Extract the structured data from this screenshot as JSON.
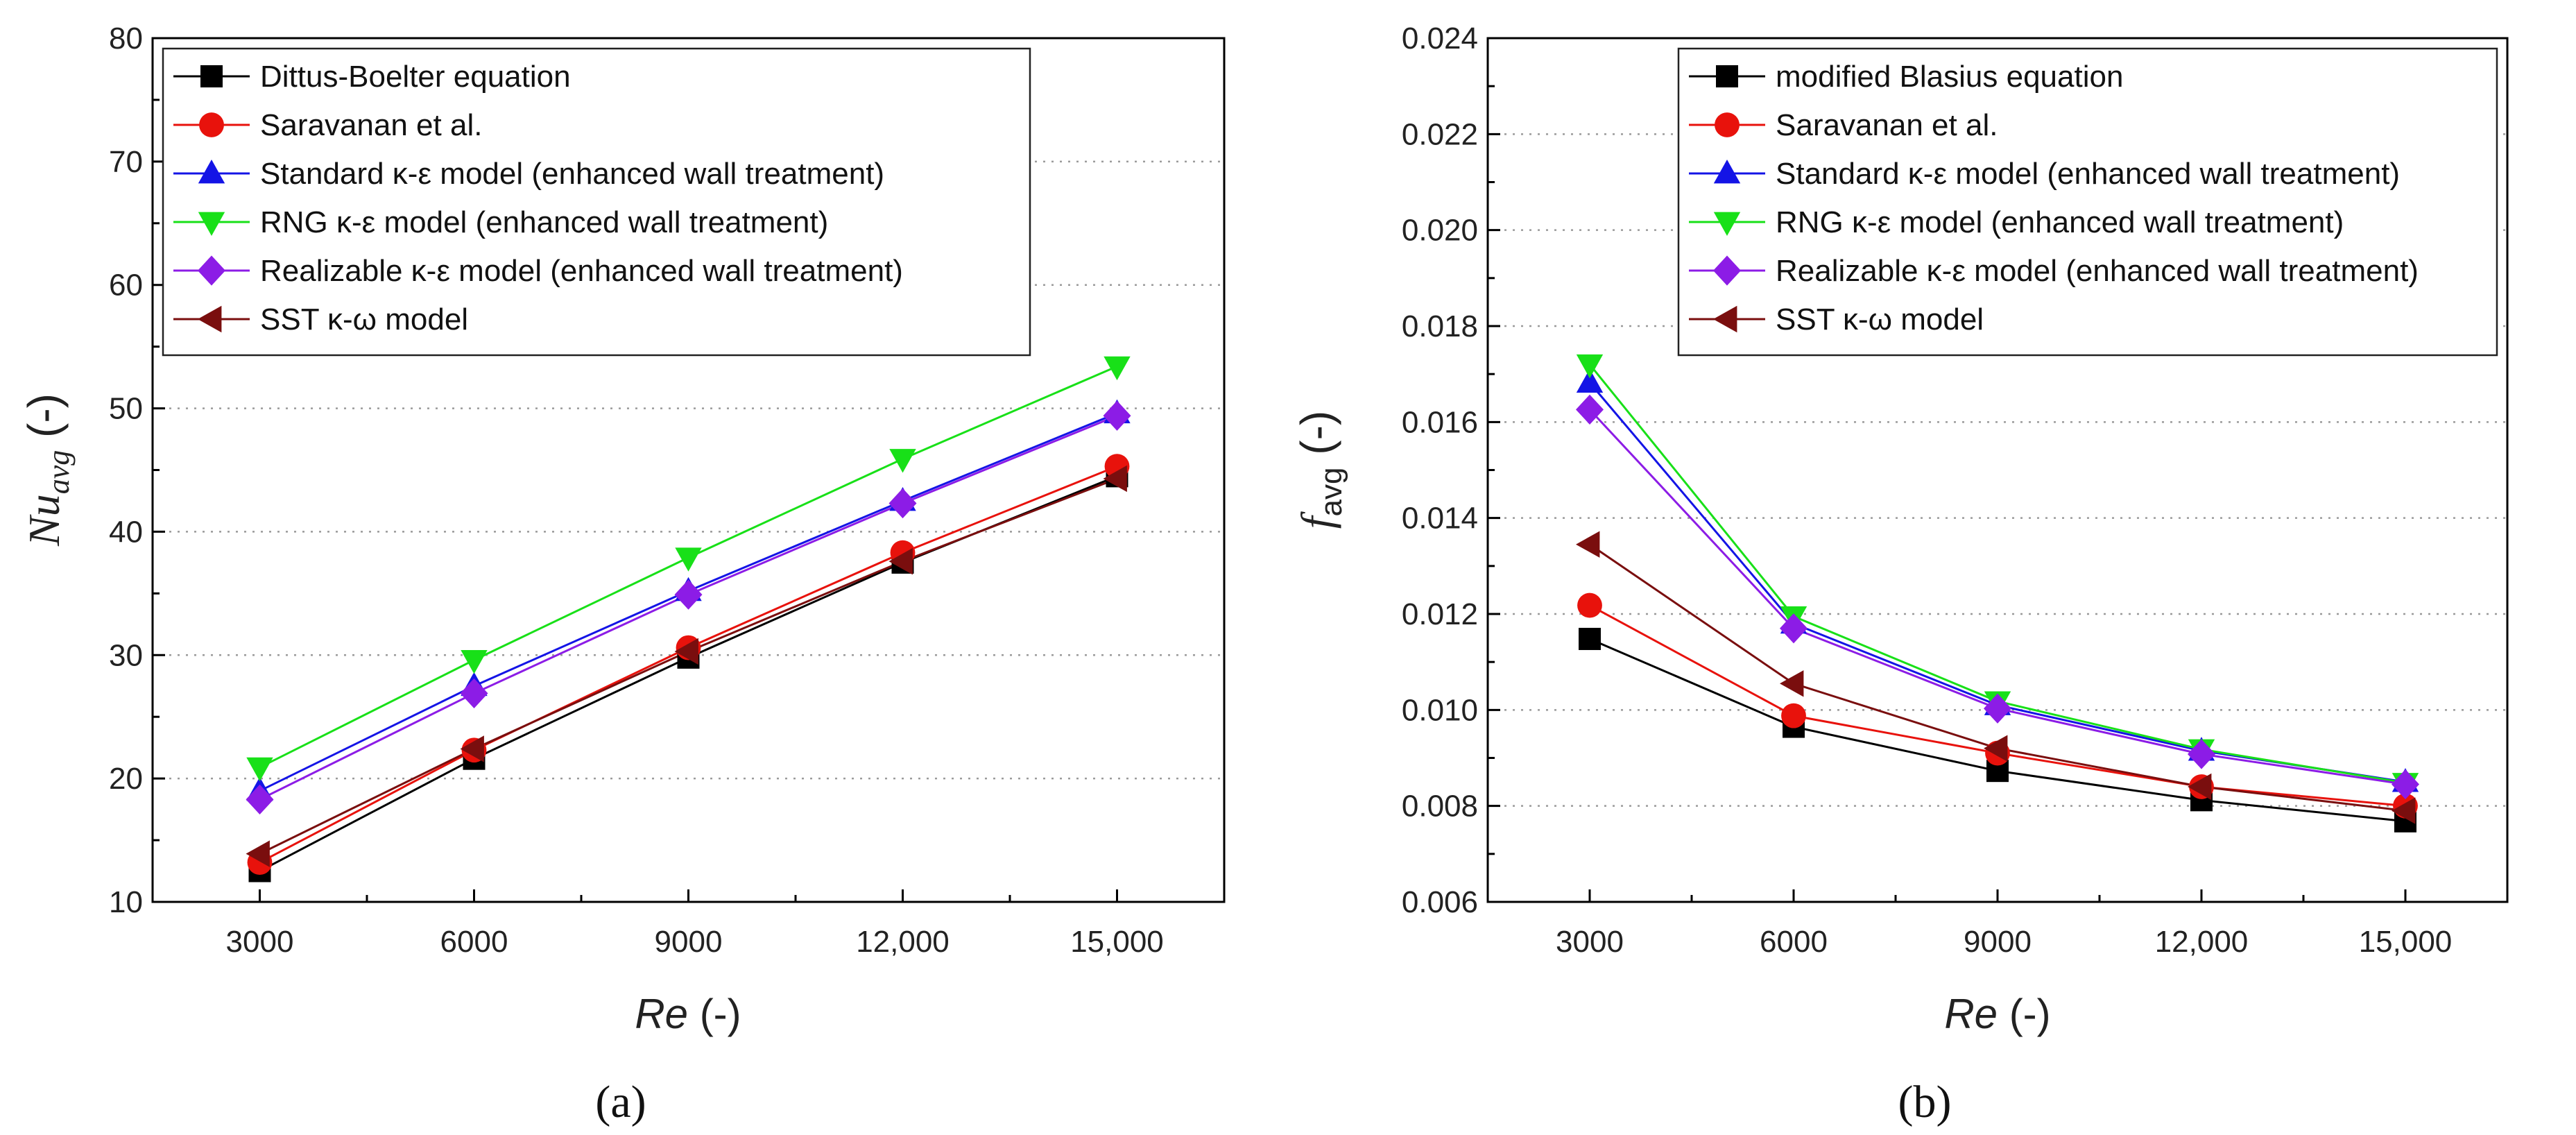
{
  "chart_data": [
    {
      "type": "line",
      "panel_label": "(a)",
      "ylabel_main": "Nu",
      "ylabel_sub": "avg",
      "ylabel_suffix": " (-)",
      "xlabel_main": "Re",
      "xlabel_suffix": " (-)",
      "x": [
        3000,
        6000,
        9000,
        12000,
        15000
      ],
      "x_tick_labels": [
        "3000",
        "6000",
        "9000",
        "12,000",
        "15,000"
      ],
      "xlim": [
        1500,
        16500
      ],
      "ylim": [
        10,
        80
      ],
      "y_ticks": [
        10,
        20,
        30,
        40,
        50,
        60,
        70,
        80
      ],
      "y_tick_labels": [
        "10",
        "20",
        "30",
        "40",
        "50",
        "60",
        "70",
        "80"
      ],
      "grid": "horizontal dotted",
      "legend_position": "top-left",
      "series": [
        {
          "name": "Dittus-Boelter equation",
          "color": "#000000",
          "marker": "square",
          "values": [
            12.5,
            21.6,
            29.8,
            37.5,
            44.5
          ]
        },
        {
          "name": "Saravanan et al.",
          "color": "#e8120c",
          "marker": "circle",
          "values": [
            13.2,
            22.3,
            30.6,
            38.3,
            45.3
          ]
        },
        {
          "name": "Standard κ-ε model (enhanced wall treatment)",
          "color": "#1414e6",
          "marker": "triangle-up",
          "values": [
            19.0,
            27.5,
            35.2,
            42.5,
            49.6
          ]
        },
        {
          "name": "RNG κ-ε model (enhanced wall treatment)",
          "color": "#18e018",
          "marker": "triangle-down",
          "values": [
            20.9,
            29.6,
            37.9,
            45.9,
            53.4
          ]
        },
        {
          "name": "Realizable κ-ε model (enhanced wall treatment)",
          "color": "#8c1ce6",
          "marker": "diamond",
          "values": [
            18.3,
            26.9,
            34.9,
            42.3,
            49.4
          ]
        },
        {
          "name": "SST κ-ω model",
          "color": "#7a0e0e",
          "marker": "triangle-left",
          "values": [
            13.9,
            22.4,
            30.3,
            37.6,
            44.3
          ]
        }
      ]
    },
    {
      "type": "line",
      "panel_label": "(b)",
      "ylabel_main": "f",
      "ylabel_sub": "avg",
      "ylabel_suffix": " (-)",
      "xlabel_main": "Re",
      "xlabel_suffix": " (-)",
      "x": [
        3000,
        6000,
        9000,
        12000,
        15000
      ],
      "x_tick_labels": [
        "3000",
        "6000",
        "9000",
        "12,000",
        "15,000"
      ],
      "xlim": [
        1500,
        16500
      ],
      "ylim": [
        0.006,
        0.024
      ],
      "y_ticks": [
        0.006,
        0.008,
        0.01,
        0.012,
        0.014,
        0.016,
        0.018,
        0.02,
        0.022,
        0.024
      ],
      "y_tick_labels": [
        "0.006",
        "0.008",
        "0.010",
        "0.012",
        "0.014",
        "0.016",
        "0.018",
        "0.020",
        "0.022",
        "0.024"
      ],
      "grid": "horizontal dotted",
      "legend_position": "top-right",
      "series": [
        {
          "name": "modified Blasius equation",
          "color": "#000000",
          "marker": "square",
          "values": [
            0.01148,
            0.00965,
            0.00873,
            0.00812,
            0.00768
          ]
        },
        {
          "name": "Saravanan et al.",
          "color": "#e8120c",
          "marker": "circle",
          "values": [
            0.01218,
            0.00988,
            0.0091,
            0.0084,
            0.008
          ]
        },
        {
          "name": "Standard κ-ε model (enhanced wall treatment)",
          "color": "#1414e6",
          "marker": "triangle-up",
          "values": [
            0.01682,
            0.0118,
            0.0101,
            0.00915,
            0.0085
          ]
        },
        {
          "name": "RNG κ-ε model (enhanced wall treatment)",
          "color": "#18e018",
          "marker": "triangle-down",
          "values": [
            0.0172,
            0.01195,
            0.01018,
            0.00918,
            0.00848
          ]
        },
        {
          "name": "Realizable κ-ε model (enhanced wall treatment)",
          "color": "#8c1ce6",
          "marker": "diamond",
          "values": [
            0.01626,
            0.0117,
            0.01003,
            0.00908,
            0.00845
          ]
        },
        {
          "name": "SST κ-ω model",
          "color": "#7a0e0e",
          "marker": "triangle-left",
          "values": [
            0.01345,
            0.01055,
            0.0092,
            0.0084,
            0.0079
          ]
        }
      ]
    }
  ]
}
